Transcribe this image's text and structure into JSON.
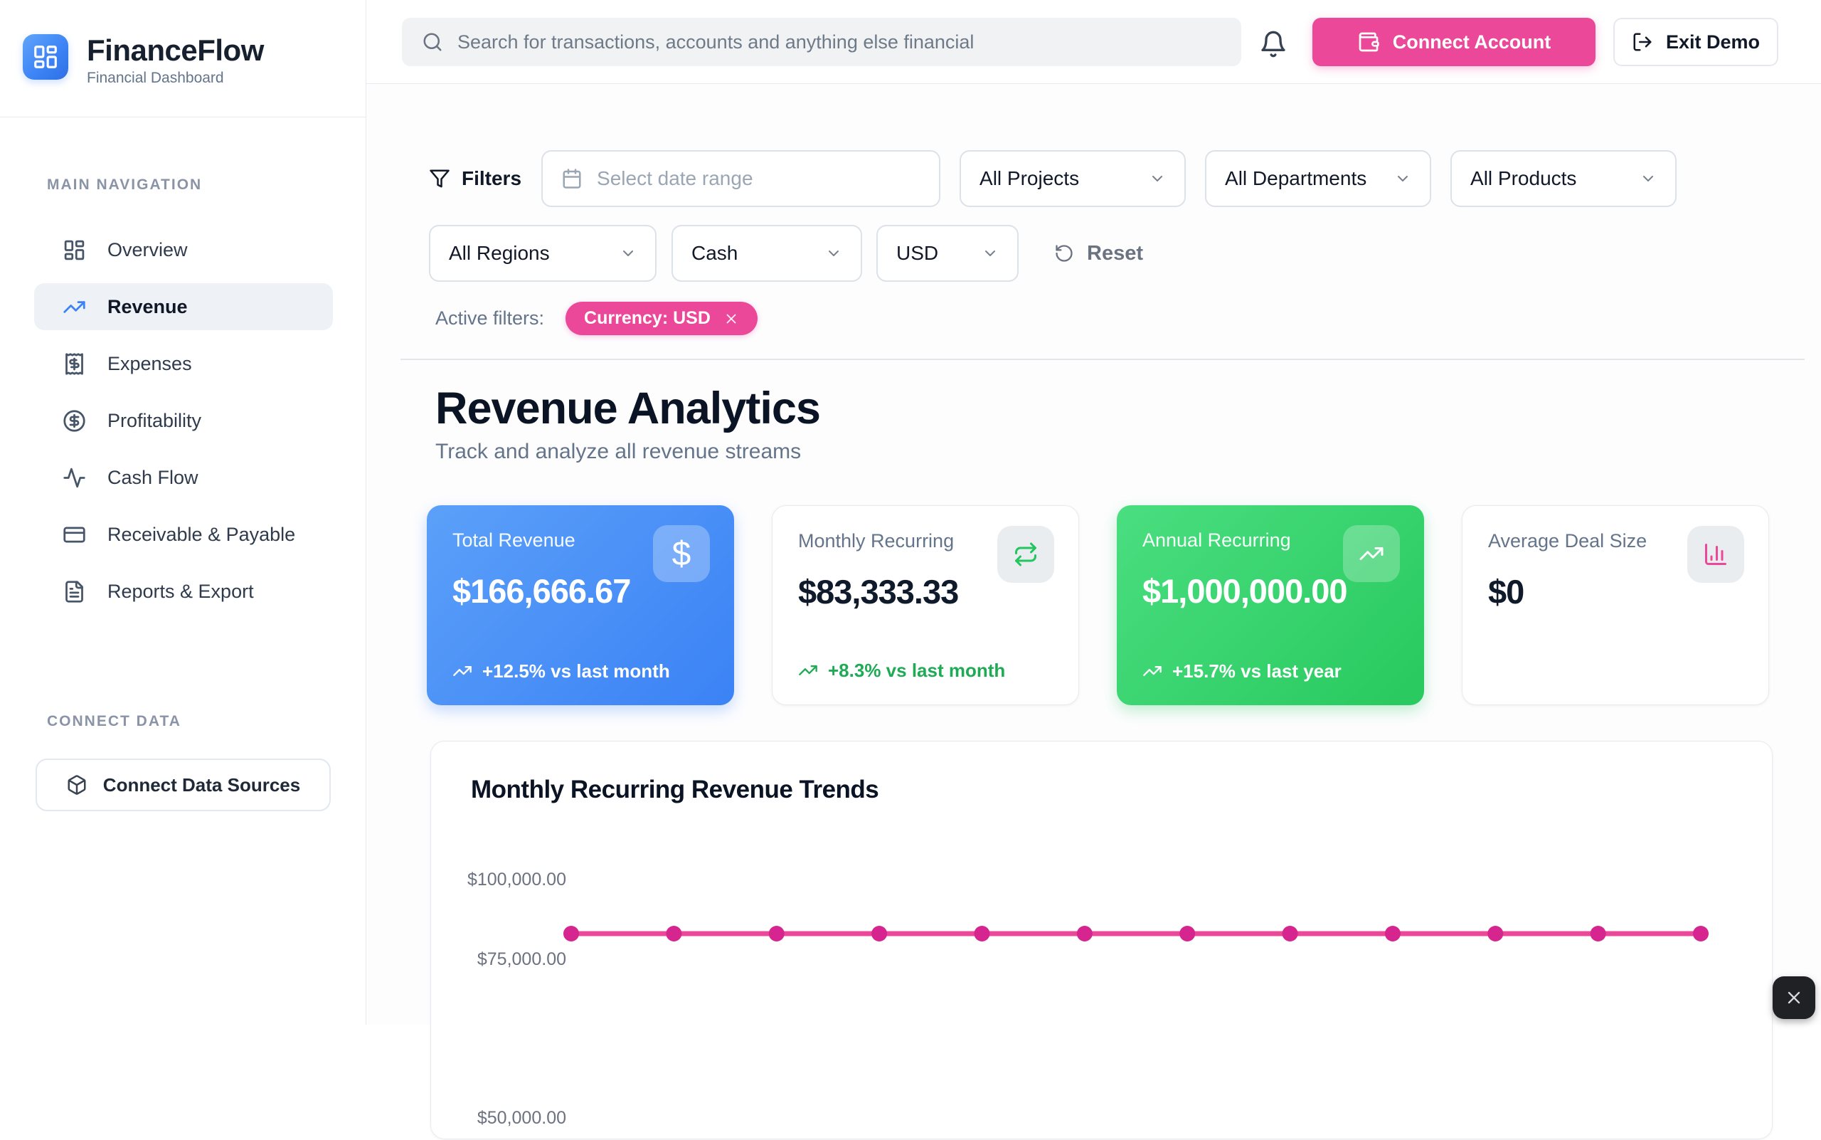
{
  "brand": {
    "name": "FinanceFlow",
    "subtitle": "Financial Dashboard"
  },
  "header": {
    "search_placeholder": "Search for transactions, accounts and anything else financial",
    "notifications_icon": "bell-icon",
    "connect_account_label": "Connect Account",
    "exit_demo_label": "Exit Demo"
  },
  "sidebar": {
    "nav_heading": "MAIN NAVIGATION",
    "items": [
      {
        "label": "Overview",
        "icon": "dashboard-icon",
        "active": false
      },
      {
        "label": "Revenue",
        "icon": "trending-up-icon",
        "active": true
      },
      {
        "label": "Expenses",
        "icon": "receipt-icon",
        "active": false
      },
      {
        "label": "Profitability",
        "icon": "dollar-circle-icon",
        "active": false
      },
      {
        "label": "Cash Flow",
        "icon": "activity-icon",
        "active": false
      },
      {
        "label": "Receivable & Payable",
        "icon": "credit-card-icon",
        "active": false
      },
      {
        "label": "Reports & Export",
        "icon": "file-text-icon",
        "active": false
      }
    ],
    "connect_heading": "CONNECT DATA",
    "connect_button_label": "Connect Data Sources"
  },
  "filters": {
    "label": "Filters",
    "date_placeholder": "Select date range",
    "projects": "All Projects",
    "departments": "All Departments",
    "products": "All Products",
    "regions": "All Regions",
    "accounting_basis": "Cash",
    "currency": "USD",
    "reset_label": "Reset",
    "active_label": "Active filters:",
    "active_chip": "Currency: USD"
  },
  "page": {
    "title": "Revenue Analytics",
    "subtitle": "Track and analyze all revenue streams"
  },
  "stats": [
    {
      "label": "Total Revenue",
      "value": "$166,666.67",
      "delta": "+12.5% vs last month",
      "variant": "blue",
      "icon": "dollar-icon"
    },
    {
      "label": "Monthly Recurring",
      "value": "$83,333.33",
      "delta": "+8.3% vs last month",
      "variant": "white",
      "icon": "repeat-icon"
    },
    {
      "label": "Annual Recurring",
      "value": "$1,000,000.00",
      "delta": "+15.7% vs last year",
      "variant": "green",
      "icon": "trending-up-icon"
    },
    {
      "label": "Average Deal Size",
      "value": "$0",
      "delta": "",
      "variant": "white",
      "icon": "bar-chart-icon"
    }
  ],
  "chart_data": {
    "type": "line",
    "title": "Monthly Recurring Revenue Trends",
    "values": [
      83333.33,
      83333.33,
      83333.33,
      83333.33,
      83333.33,
      83333.33,
      83333.33,
      83333.33,
      83333.33,
      83333.33,
      83333.33,
      83333.33
    ],
    "num_points": 12,
    "y_tick_labels": [
      "$100,000.00",
      "$75,000.00",
      "$50,000.00"
    ],
    "y_ticks_values": [
      100000,
      75000,
      50000
    ],
    "grid": false,
    "legend": false,
    "line_color": "#ec4899",
    "point_color": "#d6258e"
  },
  "colors": {
    "accent_pink": "#ec4899",
    "primary_blue": "#3b82f6",
    "positive_green": "#22c55e",
    "text_dark": "#0b1424",
    "text_gray": "#64748b"
  }
}
